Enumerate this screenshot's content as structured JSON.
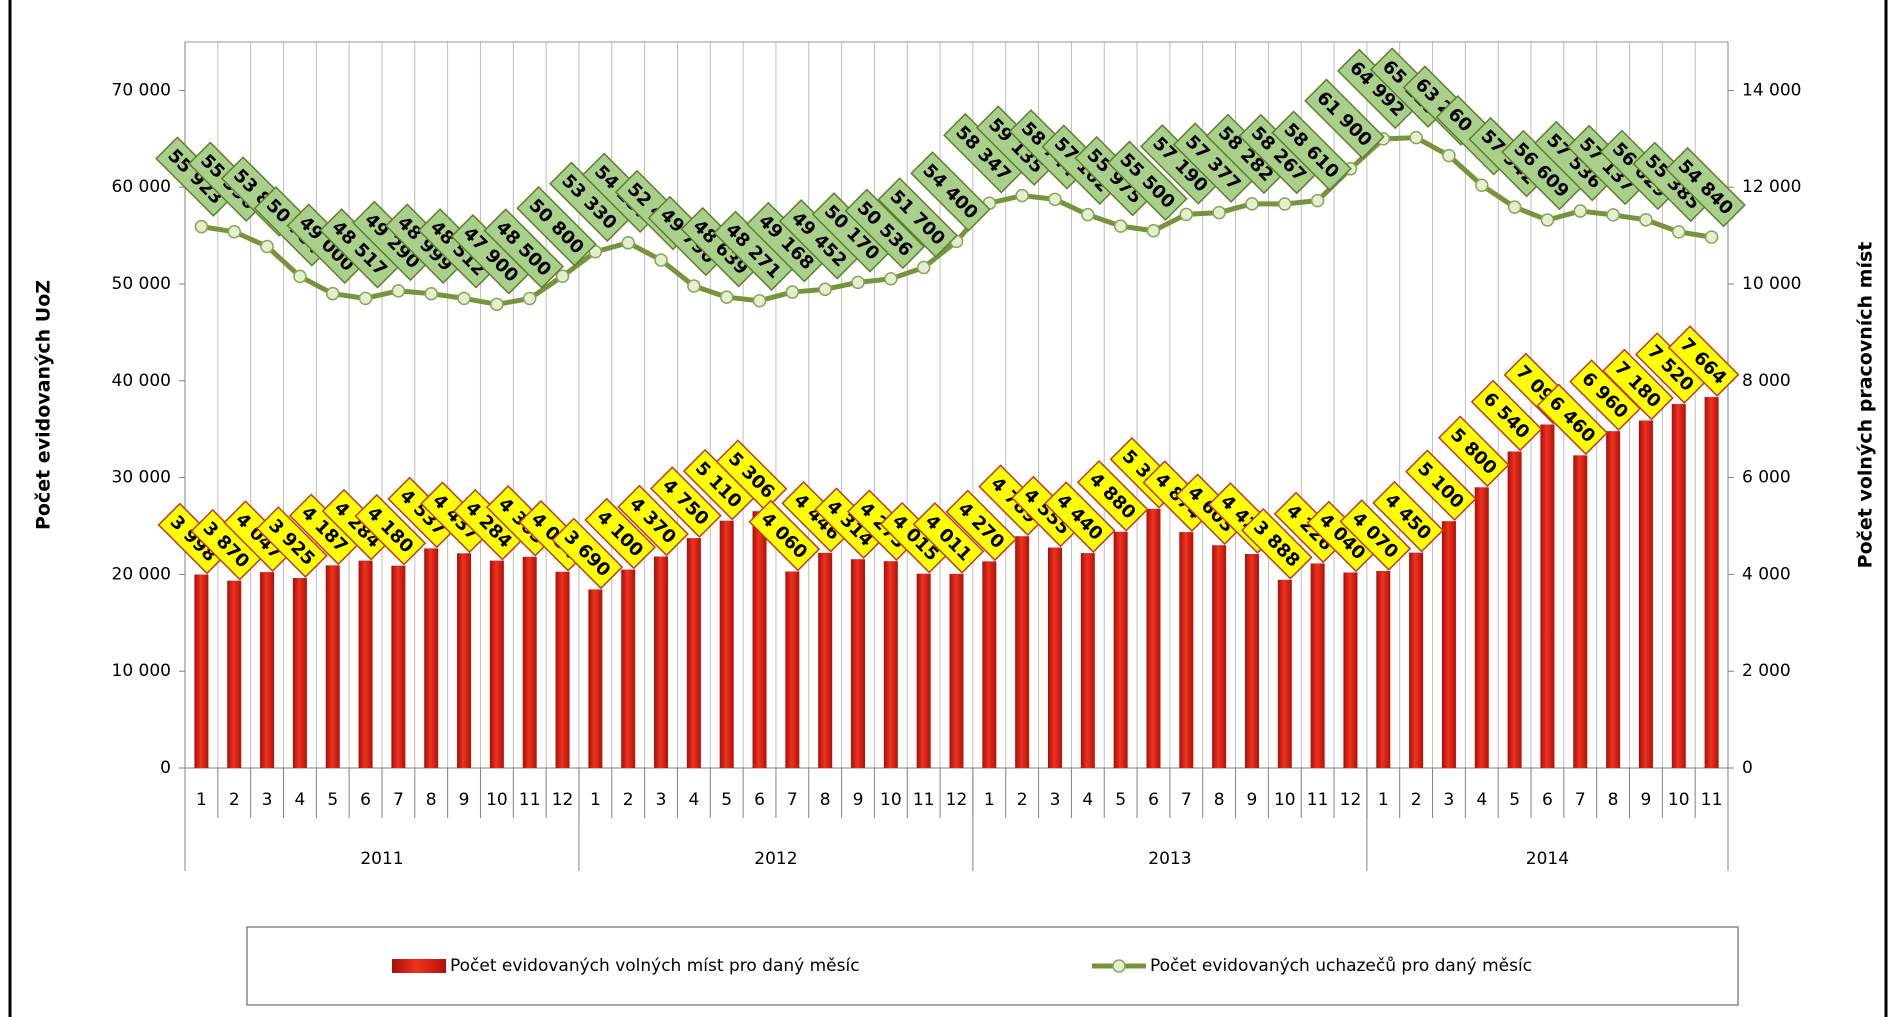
{
  "chart_data": {
    "type": "bar",
    "categories": [
      "1",
      "2",
      "3",
      "4",
      "5",
      "6",
      "7",
      "8",
      "9",
      "10",
      "11",
      "12",
      "1",
      "2",
      "3",
      "4",
      "5",
      "6",
      "7",
      "8",
      "9",
      "10",
      "11",
      "12",
      "1",
      "2",
      "3",
      "4",
      "5",
      "6",
      "7",
      "8",
      "9",
      "10",
      "11",
      "12",
      "1",
      "2",
      "3",
      "4",
      "5",
      "6",
      "7",
      "8",
      "9",
      "10",
      "11"
    ],
    "category_groups": [
      "2011",
      "2012",
      "2013",
      "2014"
    ],
    "y_label": "Počet evidovaných UoZ",
    "y2_label": "Počet volných pracovních míst",
    "ylim": [
      0,
      75000
    ],
    "yticks": [
      0,
      {
        "value": 10000,
        "label": "10 000"
      },
      {
        "value": 20000,
        "label": "20 000"
      },
      {
        "value": 30000,
        "label": "30 000"
      },
      {
        "value": 40000,
        "label": "40 000"
      },
      {
        "value": 50000,
        "label": "50 000"
      },
      {
        "value": 60000,
        "label": "60 000"
      },
      {
        "value": 70000,
        "label": "70 000"
      }
    ],
    "y2lim": [
      0,
      15000
    ],
    "y2ticks": [
      0,
      {
        "value": 2000,
        "label": "2 000"
      },
      {
        "value": 4000,
        "label": "4 000"
      },
      {
        "value": 6000,
        "label": "6 000"
      },
      {
        "value": 8000,
        "label": "8 000"
      },
      {
        "value": 10000,
        "label": "10 000"
      },
      {
        "value": 12000,
        "label": "12 000"
      },
      {
        "value": 14000,
        "label": "14 000"
      }
    ],
    "legend": "bottom",
    "series": [
      {
        "name": "Počet evidovaných volných míst pro daný měsíc",
        "type": "bar",
        "axis": "y2",
        "color": "#e3241c",
        "values": [
          3998,
          3870,
          4047,
          3925,
          4187,
          4284,
          4180,
          4537,
          4437,
          4284,
          4363,
          4054,
          3690,
          4100,
          4370,
          4750,
          5110,
          5306,
          4060,
          4446,
          4314,
          4273,
          4015,
          4011,
          4270,
          4789,
          4555,
          4440,
          4880,
          5355,
          4874,
          4603,
          4421,
          3888,
          4226,
          4040,
          4070,
          4450,
          5100,
          5800,
          6540,
          7098,
          6460,
          6960,
          7180,
          7520,
          7664
        ],
        "value_labels": [
          "3 998",
          "3 870",
          "4 047",
          "3 925",
          "4 187",
          "4 284",
          "4 180",
          "4 537",
          "4 437",
          "4 284",
          "4 363",
          "4 054",
          "3 690",
          "4 100",
          "4 370",
          "4 750",
          "5 110",
          "5 306",
          "4 060",
          "4 446",
          "4 314",
          "4 273",
          "4 015",
          "4 011",
          "4 270",
          "4 789",
          "4 555",
          "4 440",
          "4 880",
          "5 355",
          "4 874",
          "4 603",
          "4 421",
          "3 888",
          "4 226",
          "4 040",
          "4 070",
          "4 450",
          "5 100",
          "5 800",
          "6 540",
          "7 098",
          "6 460",
          "6 960",
          "7 180",
          "7 520",
          "7 664"
        ]
      },
      {
        "name": "Počet evidovaných uchazečů pro daný měsíc",
        "type": "line",
        "color": "#77933c",
        "values": [
          55923,
          55396,
          53876,
          50784,
          49000,
          48517,
          49290,
          48999,
          48512,
          47900,
          48500,
          50800,
          53330,
          54257,
          52472,
          49790,
          48639,
          48271,
          49168,
          49452,
          50170,
          50536,
          51700,
          54400,
          58347,
          59135,
          58744,
          57162,
          55975,
          55500,
          57190,
          57377,
          58282,
          58267,
          58610,
          61900,
          64992,
          65119,
          63264,
          60198,
          57942,
          56609,
          57536,
          57137,
          56629,
          55385,
          54840
        ],
        "value_labels": [
          "55 923",
          "55 396",
          "53 876",
          "50 784",
          "49 000",
          "48 517",
          "49 290",
          "48 999",
          "48 512",
          "47 900",
          "48 500",
          "50 800",
          "53 330",
          "54 257",
          "52 472",
          "49 790",
          "48 639",
          "48 271",
          "49 168",
          "49 452",
          "50 170",
          "50 536",
          "51 700",
          "54 400",
          "58 347",
          "59 135",
          "58 744",
          "57 162",
          "55 975",
          "55 500",
          "57 190",
          "57 377",
          "58 282",
          "58 267",
          "58 610",
          "61 900",
          "64 992",
          "65 119",
          "63 264",
          "60 198",
          "57 942",
          "56 609",
          "57 536",
          "57 137",
          "56 629",
          "55 385",
          "54 840"
        ]
      }
    ]
  }
}
